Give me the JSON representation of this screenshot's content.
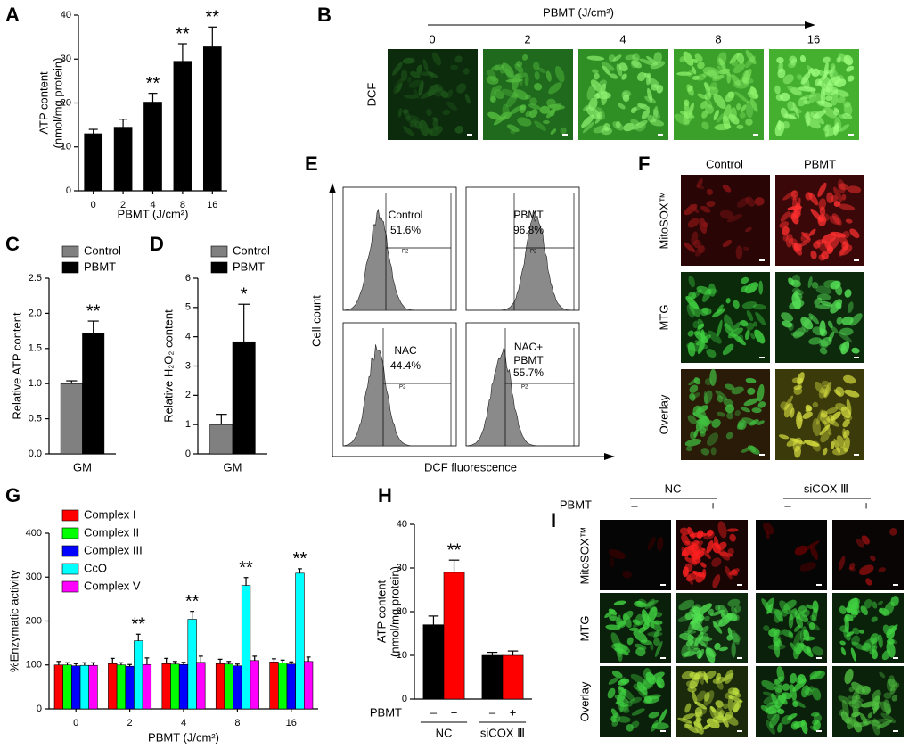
{
  "chart_data": [
    {
      "type": "bar",
      "panel": "A",
      "categories": [
        "0",
        "2",
        "4",
        "8",
        "16"
      ],
      "values": [
        13,
        14.5,
        20.2,
        29.5,
        32.8
      ],
      "errors": [
        1,
        1.8,
        2,
        4,
        4.5
      ],
      "significance": [
        null,
        null,
        "**",
        "**",
        "**"
      ],
      "color": "#000000",
      "ylim": [
        0,
        40
      ],
      "yticks": [
        0,
        10,
        20,
        30,
        40
      ],
      "ylabel": [
        "ATP content",
        "(nmol/mg protein)"
      ],
      "xlabel": "PBMT (J/cm²)"
    },
    {
      "type": "bar",
      "panel": "C",
      "categories": [
        "GM"
      ],
      "legend": "top",
      "series": [
        {
          "name": "Control",
          "color": "#808080",
          "values": [
            1.0
          ],
          "errors": [
            0.04
          ],
          "significance": [
            null
          ]
        },
        {
          "name": "PBMT",
          "color": "#000000",
          "values": [
            1.72
          ],
          "errors": [
            0.17
          ],
          "significance": [
            "**"
          ]
        }
      ],
      "ylim": [
        0,
        2.5
      ],
      "yticks": [
        {
          "value": 0,
          "label": "0.0"
        },
        0.5,
        {
          "value": 1,
          "label": "1.0"
        },
        1.5,
        {
          "value": 2,
          "label": "2.0"
        },
        2.5
      ],
      "ylabel": [
        "Relative ATP content"
      ]
    },
    {
      "type": "bar",
      "panel": "D",
      "categories": [
        "GM"
      ],
      "legend": "top",
      "series": [
        {
          "name": "Control",
          "color": "#808080",
          "values": [
            1.0
          ],
          "errors": [
            0.35
          ],
          "significance": [
            null
          ]
        },
        {
          "name": "PBMT",
          "color": "#000000",
          "values": [
            3.83
          ],
          "errors": [
            1.28
          ],
          "significance": [
            "*"
          ]
        }
      ],
      "ylim": [
        0,
        6
      ],
      "yticks": [
        0,
        1,
        2,
        3,
        4,
        5,
        6
      ],
      "ylabel": [
        "Relative H₂O₂ content"
      ]
    },
    {
      "type": "bar",
      "panel": "G",
      "categories": [
        "0",
        "2",
        "4",
        "8",
        "16"
      ],
      "legend": "top-left",
      "series": [
        {
          "name": "Complex I",
          "color": "#ff0000",
          "values": [
            100,
            103,
            103,
            103,
            107
          ],
          "errors": [
            8,
            12,
            12,
            10,
            7
          ],
          "significance": [
            null,
            null,
            null,
            null,
            null
          ]
        },
        {
          "name": "Complex II",
          "color": "#00ff00",
          "values": [
            100,
            100,
            102,
            102,
            105
          ],
          "errors": [
            5,
            5,
            6,
            6,
            6
          ],
          "significance": [
            null,
            null,
            null,
            null,
            null
          ]
        },
        {
          "name": "Complex III",
          "color": "#0000ff",
          "values": [
            98,
            97,
            101,
            98,
            102
          ],
          "errors": [
            5,
            4,
            5,
            4,
            5
          ],
          "significance": [
            null,
            null,
            null,
            null,
            null
          ]
        },
        {
          "name": "CcO",
          "color": "#00ffff",
          "values": [
            99,
            155,
            204,
            281,
            309
          ],
          "errors": [
            6,
            15,
            18,
            18,
            10
          ],
          "significance": [
            null,
            "**",
            "**",
            "**",
            "**"
          ]
        },
        {
          "name": "Complex V",
          "color": "#ff00ff",
          "values": [
            99,
            101,
            106,
            110,
            108
          ],
          "errors": [
            6,
            15,
            14,
            10,
            10
          ],
          "significance": [
            null,
            null,
            null,
            null,
            null
          ]
        }
      ],
      "ylim": [
        0,
        400
      ],
      "yticks": [
        0,
        100,
        200,
        300,
        400
      ],
      "ylabel": [
        "%Enzymatic activity"
      ],
      "xlabel": "PBMT (J/cm²)"
    },
    {
      "type": "bar",
      "panel": "H",
      "categories": [
        "NC",
        "siCOX Ⅲ"
      ],
      "group_label": "PBMT",
      "series": [
        {
          "name": "–",
          "color": "#000000",
          "values": [
            17,
            10
          ],
          "errors": [
            2,
            0.7
          ],
          "significance": [
            null,
            null
          ]
        },
        {
          "name": "+",
          "color": "#ff0000",
          "values": [
            29,
            10
          ],
          "errors": [
            2.8,
            1
          ],
          "significance": [
            "**",
            null
          ]
        }
      ],
      "ylim": [
        0,
        40
      ],
      "yticks": [
        0,
        10,
        20,
        30,
        40
      ],
      "ylabel": [
        "ATP content",
        "(nmol/mg protein)"
      ]
    }
  ],
  "dcf_images": {
    "panel": "B",
    "axis_label": "PBMT (J/cm²)",
    "doses": [
      "0",
      "2",
      "4",
      "8",
      "16"
    ],
    "row_label": "DCF"
  },
  "flow": {
    "panel": "E",
    "ylabel": "Cell count",
    "xlabel": "DCF fluorescence",
    "gate_label": "P2",
    "plots": [
      {
        "label": [
          "Control"
        ],
        "percent": "51.6%"
      },
      {
        "label": [
          "PBMT"
        ],
        "percent": "96.8%"
      },
      {
        "label": [
          "NAC"
        ],
        "percent": "44.4%"
      },
      {
        "label": [
          "NAC+",
          "PBMT"
        ],
        "percent": "55.7%"
      }
    ]
  },
  "mito_images": {
    "panel": "F",
    "columns": [
      "Control",
      "PBMT"
    ],
    "rows": [
      "MitoSOX™",
      "MTG",
      "Overlay"
    ]
  },
  "sicox_images": {
    "panel": "I",
    "groups": [
      "NC",
      "siCOX Ⅲ"
    ],
    "treatment_label": "PBMT",
    "treatment_levels": [
      "–",
      "+"
    ],
    "rows": [
      "MitoSOX™",
      "MTG",
      "Overlay"
    ]
  }
}
